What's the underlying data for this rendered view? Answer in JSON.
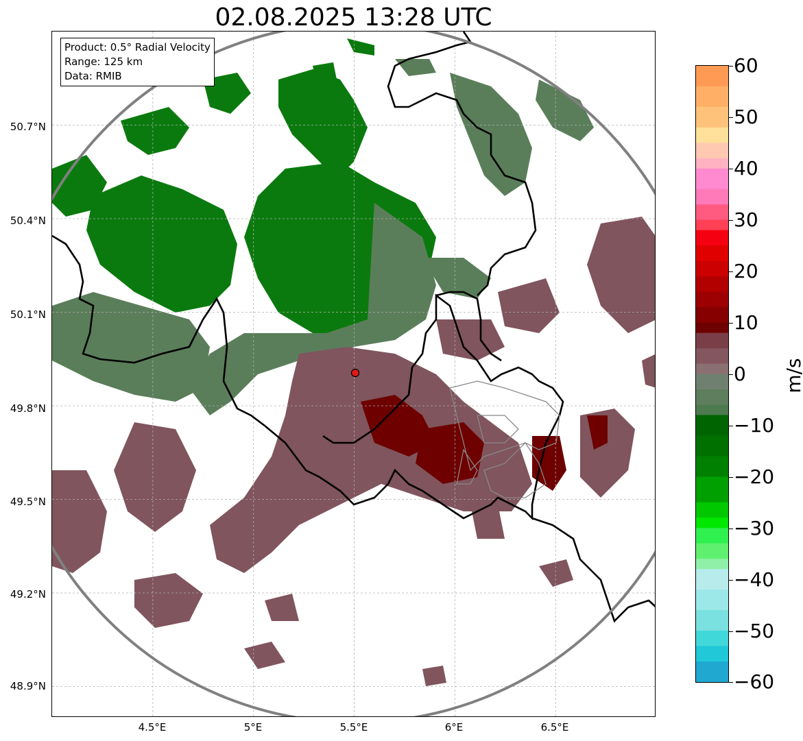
{
  "title": "02.08.2025 13:28 UTC",
  "infobox": {
    "product": "Product: 0.5° Radial Velocity",
    "range": "Range: 125 km",
    "data": "Data: RMIB"
  },
  "map": {
    "lon_range": [
      4.0,
      7.0
    ],
    "lat_range": [
      48.8,
      51.0
    ],
    "radar_site": {
      "lon": 5.505,
      "lat": 49.915
    },
    "lat_ticks": [
      "50.7°N",
      "50.4°N",
      "50.1°N",
      "49.8°N",
      "49.5°N",
      "49.2°N",
      "48.9°N"
    ],
    "lon_ticks": [
      "4.5°E",
      "5°E",
      "5.5°E",
      "6°E",
      "6.5°E"
    ],
    "grid": true,
    "colors": {
      "approaching_strong": "#007000",
      "approaching_weak": "#4e7a50",
      "receding_weak": "#7a5058",
      "receding_strong": "#6e0000",
      "border": "#000000",
      "range_ring": "#808080"
    }
  },
  "colorbar": {
    "unit": "m/s",
    "min": -60,
    "max": 60,
    "ticks": [
      "60",
      "50",
      "40",
      "30",
      "20",
      "10",
      "0",
      "−10",
      "−20",
      "−30",
      "−40",
      "−50",
      "−60"
    ]
  }
}
